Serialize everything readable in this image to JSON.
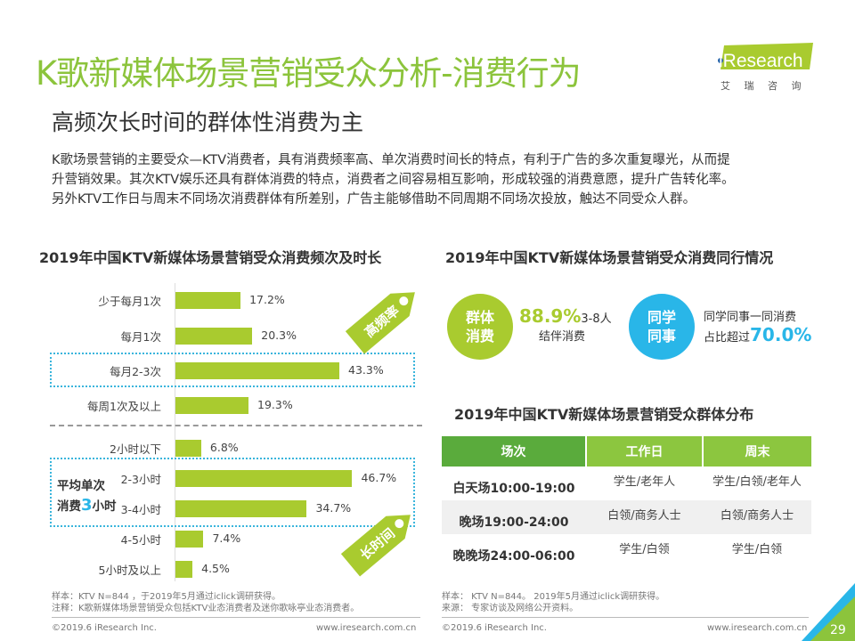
{
  "header": {
    "title": "K歌新媒体场景营销受众分析-消费行为",
    "subtitle": "高频次长时间的群体性消费为主",
    "intro": [
      "K歌场景营销的主要受众—KTV消费者，具有消费频率高、单次消费时间长的特点，有利于广告的多次重复曝光，从而提",
      "升营销效果。其次KTV娱乐还具有群体消费的特点，消费者之间容易相互影响，形成较强的消费意愿，提升广告转化率。",
      "另外KTV工作日与周末不同场次消费群体有所差别，广告主能够借助不同周期不同场次投放，触达不同受众人群。"
    ],
    "logo_text": "iResearch",
    "logo_cn": "艾 瑞 咨 询"
  },
  "colors": {
    "green": "#8cc43c",
    "bar": "#a9cb2f",
    "blue": "#29b6e8",
    "table_dark": "#5aab3c",
    "table_light": "#8cc63f"
  },
  "chart_data": {
    "type": "bar",
    "title": "2019年中国KTV新媒体场景营销受众消费频次及时长",
    "groups": [
      {
        "categories": [
          "少于每月1次",
          "每月1次",
          "每月2-3次",
          "每周1次及以上"
        ],
        "values": [
          17.2,
          20.3,
          43.3,
          19.3
        ],
        "labels": [
          "17.2%",
          "20.3%",
          "43.3%",
          "19.3%"
        ],
        "tag": "高频率"
      },
      {
        "categories": [
          "2小时以下",
          "2-3小时",
          "3-4小时",
          "4-5小时",
          "5小时及以上"
        ],
        "values": [
          6.8,
          46.7,
          34.7,
          7.4,
          4.5
        ],
        "labels": [
          "6.8%",
          "46.7%",
          "34.7%",
          "7.4%",
          "4.5%"
        ],
        "tag": "长时间"
      }
    ],
    "annotation": {
      "pre": "平均单次",
      "mid_a": "消费",
      "num": "3",
      "mid_b": "小时"
    }
  },
  "companion": {
    "title": "2019年中国KTV新媒体场景营销受众消费同行情况",
    "group": {
      "circle_line1": "群体",
      "circle_line2": "消费",
      "value": "88.9%",
      "desc1": "3-8人",
      "desc2": "结伴消费"
    },
    "colleague": {
      "circle_line1": "同学",
      "circle_line2": "同事",
      "desc1": "同学同事一同消费",
      "desc2": "占比超过",
      "value": "70.0%"
    }
  },
  "table": {
    "title": "2019年中国KTV新媒体场景营销受众群体分布",
    "headers": [
      "场次",
      "工作日",
      "周末"
    ],
    "rows": [
      [
        "白天场10:00-19:00",
        "学生/老年人",
        "学生/白领/老年人"
      ],
      [
        "晚场19:00-24:00",
        "白领/商务人士",
        "白领/商务人士"
      ],
      [
        "晚晚场24:00-06:00",
        "学生/白领",
        "学生/白领"
      ]
    ]
  },
  "notes_left": [
    "样本：KTV N=844 ，于2019年5月通过iclick调研获得。",
    "注释：K歌新媒体场景营销受众包括KTV业态消费者及迷你歌咏亭业态消费者。"
  ],
  "notes_right": [
    "样本： KTV N=844。 2019年5月通过iclick调研获得。",
    "来源： 专家访谈及网络公开资料。"
  ],
  "footer": {
    "copyright": "©2019.6 iResearch Inc.",
    "url": "www.iresearch.com.cn",
    "page": "29"
  }
}
